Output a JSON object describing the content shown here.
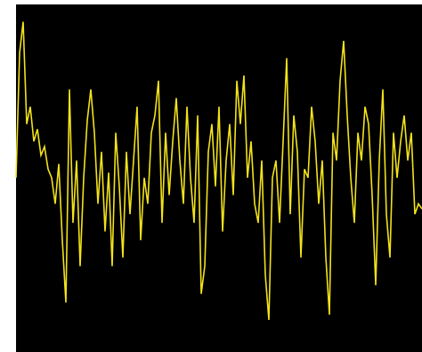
{
  "chart_data": {
    "type": "line",
    "color": "#f2e21a",
    "background": "#000000",
    "ylim": [
      -100,
      100
    ],
    "values": [
      0,
      72,
      90,
      31,
      41,
      21,
      28,
      13,
      18,
      5,
      0,
      -15,
      8,
      -36,
      -72,
      51,
      -26,
      10,
      -51,
      0,
      33,
      51,
      26,
      -15,
      15,
      -31,
      3,
      -51,
      26,
      -5,
      -46,
      15,
      -21,
      10,
      41,
      -36,
      0,
      -15,
      26,
      36,
      56,
      -26,
      26,
      -10,
      21,
      46,
      10,
      -15,
      41,
      0,
      -26,
      36,
      -67,
      -51,
      15,
      31,
      -5,
      41,
      -31,
      10,
      31,
      -10,
      56,
      31,
      59,
      0,
      21,
      -15,
      -26,
      10,
      -56,
      -82,
      0,
      10,
      -26,
      21,
      69,
      -21,
      36,
      15,
      -46,
      5,
      0,
      41,
      21,
      -15,
      10,
      -46,
      -79,
      26,
      10,
      56,
      79,
      36,
      0,
      -26,
      26,
      10,
      41,
      31,
      -10,
      -62,
      10,
      51,
      -21,
      -46,
      26,
      0,
      21,
      36,
      10,
      26,
      -21,
      -15,
      -18
    ]
  }
}
